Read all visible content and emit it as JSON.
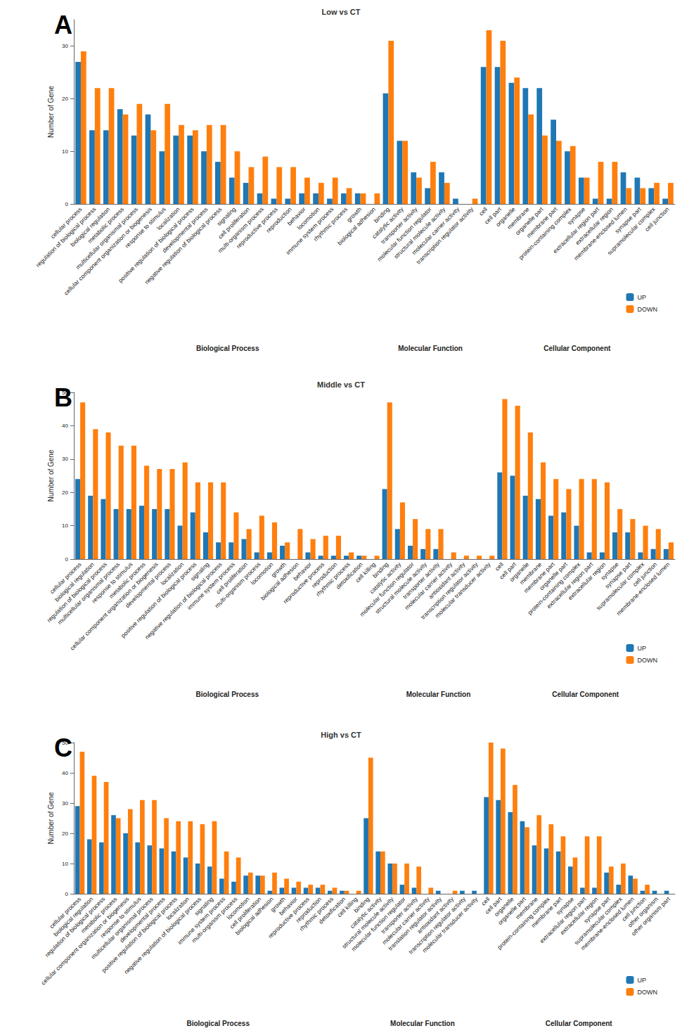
{
  "chart_data": [
    {
      "type": "bar",
      "panel": "A",
      "title": "Low vs CT",
      "y_label": "Number of Gene",
      "ylim": [
        0,
        35
      ],
      "yticks": [
        0,
        10,
        20,
        30
      ],
      "grid": false,
      "legend": "bottom-right",
      "groups": [
        {
          "label": "Biological Process",
          "categories": [
            "cellular process",
            "regulation of biological process",
            "biological regulation",
            "metabolic process",
            "multicellular organismal process",
            "cellular component organization or biogenesis",
            "response to stimulus",
            "localization",
            "positive regulation of biological process",
            "developmental process",
            "negative regulation of biological process",
            "signaling",
            "cell proliferation",
            "multi-organism process",
            "reproductive process",
            "reproduction",
            "behavior",
            "locomotion",
            "immune system process",
            "rhythmic process",
            "growth",
            "biological adhesion"
          ]
        },
        {
          "label": "Molecular Function",
          "categories": [
            "binding",
            "catalytic activity",
            "transporter activity",
            "molecular function regulator",
            "structural molecule activity",
            "molecular carrier activity",
            "transcription regulator activity"
          ]
        },
        {
          "label": "Cellular Component",
          "categories": [
            "cell",
            "cell part",
            "organelle",
            "membrane",
            "organelle part",
            "membrane part",
            "protein-containing complex",
            "synapse",
            "extracellular region part",
            "extracellular region",
            "membrane-enclosed lumen",
            "synapse part",
            "supramolecular complex",
            "cell junction"
          ]
        }
      ],
      "series": [
        {
          "name": "UP",
          "color": "#1f77b4",
          "values": [
            27,
            14,
            14,
            18,
            13,
            17,
            10,
            13,
            13,
            10,
            8,
            5,
            4,
            2,
            1,
            1,
            2,
            2,
            1,
            2,
            2,
            0,
            21,
            12,
            6,
            3,
            6,
            1,
            0,
            26,
            26,
            23,
            22,
            22,
            16,
            10,
            5,
            1,
            1,
            6,
            5,
            3,
            1
          ]
        },
        {
          "name": "DOWN",
          "color": "#ff7f0e",
          "values": [
            29,
            22,
            22,
            17,
            19,
            14,
            19,
            15,
            14,
            15,
            15,
            10,
            7,
            9,
            7,
            7,
            5,
            4,
            5,
            3,
            2,
            2,
            31,
            12,
            5,
            8,
            4,
            0,
            1,
            33,
            31,
            24,
            17,
            13,
            12,
            11,
            5,
            8,
            8,
            3,
            3,
            4,
            4
          ]
        }
      ]
    },
    {
      "type": "bar",
      "panel": "B",
      "title": "Middle vs CT",
      "y_label": "Number of Gene",
      "ylim": [
        0,
        50
      ],
      "yticks": [
        0,
        10,
        20,
        30,
        40,
        50
      ],
      "grid": false,
      "legend": "bottom-right",
      "groups": [
        {
          "label": "Biological Process",
          "categories": [
            "cellular process",
            "biological regulation",
            "regulation of biological process",
            "multicellular organismal process",
            "response to stimulus",
            "metabolic process",
            "cellular component organization or biogenesis",
            "developmental process",
            "localization",
            "positive regulation of biological process",
            "signaling",
            "negative regulation of biological process",
            "immune system process",
            "cell proliferation",
            "multi-organism process",
            "locomotion",
            "growth",
            "biological adhesion",
            "behavior",
            "reproductive process",
            "reproduction",
            "rhythmic process",
            "detoxification",
            "cell killing"
          ]
        },
        {
          "label": "Molecular Function",
          "categories": [
            "binding",
            "catalytic activity",
            "molecular function regulator",
            "structural molecule activity",
            "transporter activity",
            "molecular carrier activity",
            "antioxidant activity",
            "transcription regulator activity",
            "molecular transducer activity"
          ]
        },
        {
          "label": "Cellular Component",
          "categories": [
            "cell",
            "cell part",
            "organelle",
            "membrane",
            "membrane part",
            "organelle part",
            "protein-containing complex",
            "extracellular region part",
            "extracellular region",
            "synapse",
            "synapse part",
            "supramolecular complex",
            "cell junction",
            "membrane-enclosed lumen"
          ]
        }
      ],
      "series": [
        {
          "name": "UP",
          "color": "#1f77b4",
          "values": [
            24,
            19,
            18,
            15,
            15,
            16,
            15,
            15,
            10,
            14,
            8,
            5,
            5,
            6,
            2,
            2,
            4,
            0,
            2,
            1,
            1,
            1,
            1,
            0,
            21,
            9,
            4,
            3,
            3,
            0,
            0,
            0,
            0,
            26,
            25,
            19,
            18,
            13,
            14,
            10,
            2,
            2,
            8,
            8,
            2,
            3,
            3
          ]
        },
        {
          "name": "DOWN",
          "color": "#ff7f0e",
          "values": [
            47,
            39,
            38,
            34,
            34,
            28,
            27,
            27,
            29,
            23,
            23,
            23,
            14,
            9,
            13,
            11,
            5,
            9,
            6,
            7,
            7,
            2,
            1,
            1,
            47,
            17,
            12,
            9,
            9,
            2,
            1,
            1,
            1,
            48,
            46,
            38,
            29,
            24,
            21,
            24,
            24,
            23,
            15,
            12,
            10,
            9,
            5
          ]
        }
      ]
    },
    {
      "type": "bar",
      "panel": "C",
      "title": "High vs CT",
      "y_label": "Number of Gene",
      "ylim": [
        0,
        50
      ],
      "yticks": [
        0,
        10,
        20,
        30,
        40,
        50
      ],
      "grid": false,
      "legend": "bottom-right",
      "groups": [
        {
          "label": "Biological Process",
          "categories": [
            "cellular process",
            "biological regulation",
            "regulation of biological process",
            "metabolic process",
            "cellular component organization or biogenesis",
            "response to stimulus",
            "multicellular organismal process",
            "developmental process",
            "positive regulation of biological process",
            "localization",
            "negative regulation of biological process",
            "signaling",
            "immune system process",
            "multi-organism process",
            "locomotion",
            "cell proliferation",
            "biological adhesion",
            "growth",
            "behavior",
            "reproductive process",
            "reproduction",
            "rhythmic process",
            "detoxification",
            "cell killing"
          ]
        },
        {
          "label": "Molecular Function",
          "categories": [
            "binding",
            "catalytic activity",
            "structural molecule activity",
            "molecular function regulator",
            "transporter activity",
            "molecular carrier activity",
            "translation regulator activity",
            "antioxidant activity",
            "transcription regulator activity",
            "molecular transducer activity"
          ]
        },
        {
          "label": "Cellular Component",
          "categories": [
            "cell",
            "cell part",
            "organelle",
            "organelle part",
            "membrane",
            "protein-containing complex",
            "membrane part",
            "synapse",
            "extracellular region part",
            "extracellular region",
            "synapse part",
            "supramolecular complex",
            "membrane-enclosed lumen",
            "cell junction",
            "other organism",
            "other organism part"
          ]
        }
      ],
      "series": [
        {
          "name": "UP",
          "color": "#1f77b4",
          "values": [
            29,
            18,
            17,
            26,
            20,
            17,
            16,
            15,
            14,
            12,
            10,
            9,
            5,
            4,
            6,
            6,
            1,
            2,
            2,
            2,
            2,
            1,
            1,
            0,
            25,
            14,
            10,
            3,
            2,
            0,
            1,
            0,
            1,
            1,
            32,
            31,
            27,
            24,
            16,
            15,
            14,
            9,
            2,
            2,
            7,
            3,
            6,
            1,
            1,
            1
          ]
        },
        {
          "name": "DOWN",
          "color": "#ff7f0e",
          "values": [
            47,
            39,
            37,
            25,
            28,
            31,
            31,
            25,
            24,
            24,
            23,
            24,
            14,
            12,
            7,
            6,
            7,
            5,
            4,
            3,
            3,
            2,
            1,
            1,
            45,
            14,
            10,
            10,
            9,
            2,
            0,
            1,
            0,
            0,
            50,
            48,
            36,
            22,
            26,
            23,
            19,
            12,
            19,
            19,
            9,
            10,
            5,
            3,
            0,
            0
          ]
        }
      ]
    }
  ]
}
